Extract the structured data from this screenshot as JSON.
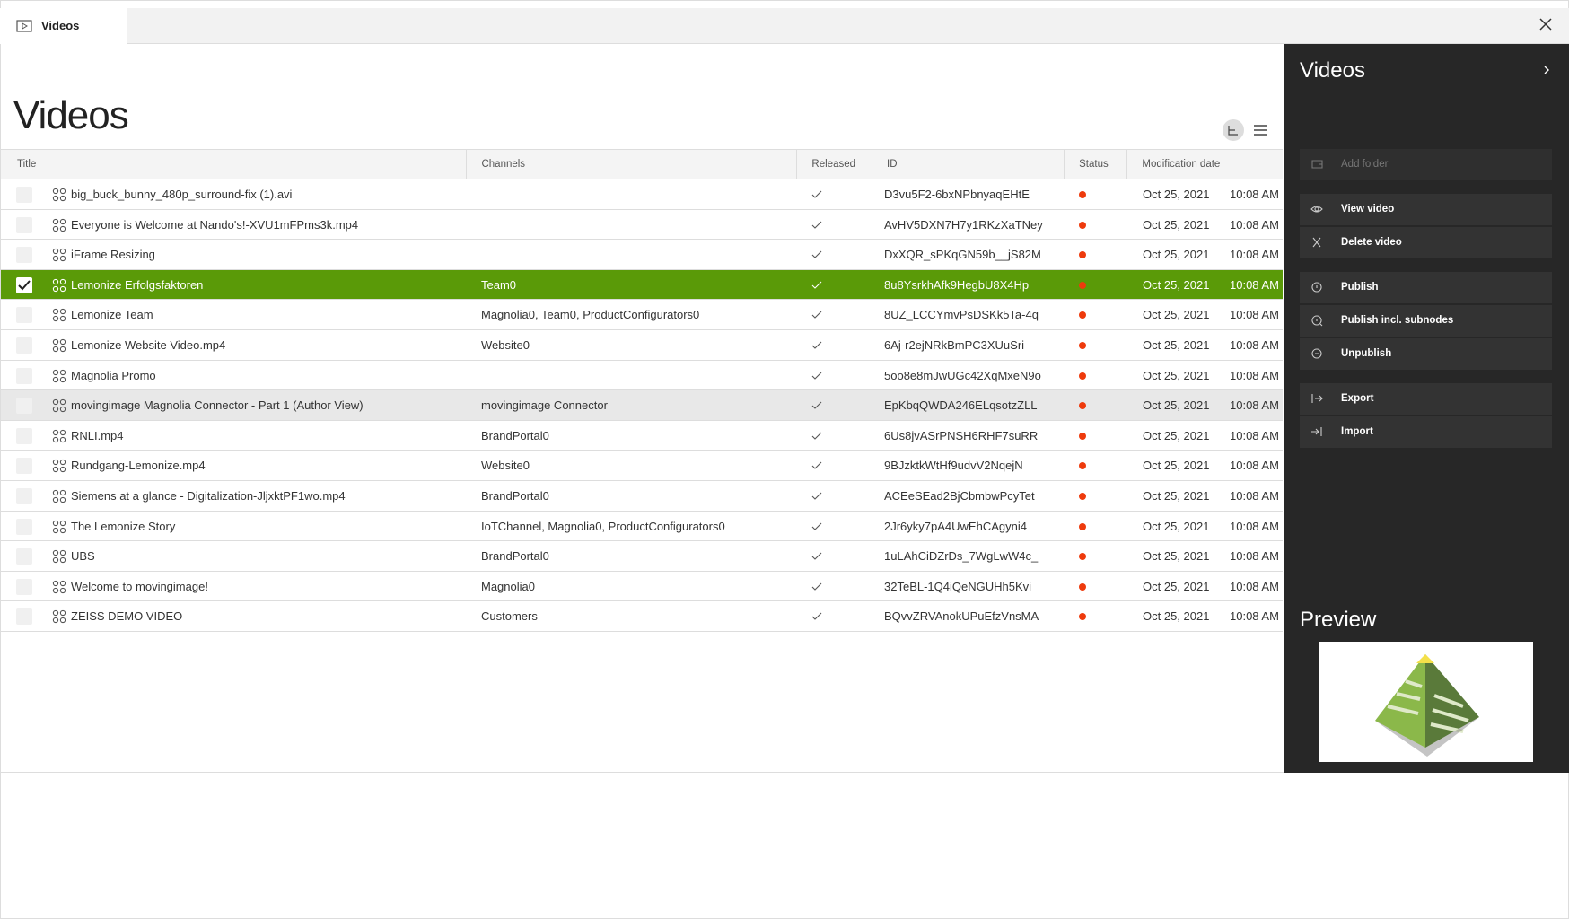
{
  "tab": {
    "label": "Videos"
  },
  "header": {
    "title": "Videos"
  },
  "table": {
    "columns": [
      "Title",
      "Channels",
      "Released",
      "ID",
      "Status",
      "Modification date"
    ],
    "selected_row": 3,
    "hover_row": 7,
    "rows": [
      {
        "title": "big_buck_bunny_480p_surround-fix (1).avi",
        "id": "D3vu5F2-6bxNPbnyaqEHtE",
        "date": "Oct 25, 2021",
        "time": "10:08 AM"
      },
      {
        "title": "Everyone is Welcome at Nando's!-XVU1mFPms3k.mp4",
        "id": "AvHV5DXN7H7y1RKzXaTNey",
        "date": "Oct 25, 2021",
        "time": "10:08 AM"
      },
      {
        "title": "iFrame Resizing",
        "id": "DxXQR_sPKqGN59b__jS82M",
        "date": "Oct 25, 2021",
        "time": "10:08 AM"
      },
      {
        "title": "Lemonize Erfolgsfaktoren",
        "channels": "Team0",
        "id": "8u8YsrkhAfk9HegbU8X4Hp",
        "date": "Oct 25, 2021",
        "time": "10:08 AM"
      },
      {
        "title": "Lemonize Team",
        "channels": "Magnolia0, Team0, ProductConfigurators0",
        "id": "8UZ_LCCYmvPsDSKk5Ta-4q",
        "date": "Oct 25, 2021",
        "time": "10:08 AM"
      },
      {
        "title": "Lemonize Website Video.mp4",
        "channels": "Website0",
        "id": "6Aj-r2ejNRkBmPC3XUuSri",
        "date": "Oct 25, 2021",
        "time": "10:08 AM"
      },
      {
        "title": "Magnolia Promo",
        "id": "5oo8e8mJwUGc42XqMxeN9o",
        "date": "Oct 25, 2021",
        "time": "10:08 AM"
      },
      {
        "title": "movingimage Magnolia Connector - Part 1 (Author View)",
        "channels": "movingimage Connector",
        "id": "EpKbqQWDA246ELqsotzZLL",
        "date": "Oct 25, 2021",
        "time": "10:08 AM"
      },
      {
        "title": "RNLI.mp4",
        "channels": "BrandPortal0",
        "id": "6Us8jvASrPNSH6RHF7suRR",
        "date": "Oct 25, 2021",
        "time": "10:08 AM"
      },
      {
        "title": "Rundgang-Lemonize.mp4",
        "channels": "Website0",
        "id": "9BJzktkWtHf9udvV2NqejN",
        "date": "Oct 25, 2021",
        "time": "10:08 AM"
      },
      {
        "title": "Siemens at a glance - Digitalization-JljxktPF1wo.mp4",
        "channels": "BrandPortal0",
        "id": "ACEeSEad2BjCbmbwPcyTet",
        "date": "Oct 25, 2021",
        "time": "10:08 AM"
      },
      {
        "title": "The Lemonize Story",
        "channels": "IoTChannel, Magnolia0, ProductConfigurators0",
        "id": "2Jr6yky7pA4UwEhCAgyni4",
        "date": "Oct 25, 2021",
        "time": "10:08 AM"
      },
      {
        "title": "UBS",
        "channels": "BrandPortal0",
        "id": "1uLAhCiDZrDs_7WgLwW4c_",
        "date": "Oct 25, 2021",
        "time": "10:08 AM"
      },
      {
        "title": "Welcome to movingimage!",
        "channels": "Magnolia0",
        "id": "32TeBL-1Q4iQeNGUHh5Kvi",
        "date": "Oct 25, 2021",
        "time": "10:08 AM"
      },
      {
        "title": "ZEISS DEMO VIDEO",
        "channels": "Customers",
        "id": "BQvvZRVAnokUPuEfzVnsMA",
        "date": "Oct 25, 2021",
        "time": "10:08 AM"
      }
    ]
  },
  "panel": {
    "title": "Videos",
    "actions": [
      {
        "label": "Add folder",
        "group": 0,
        "disabled": true
      },
      {
        "label": "View video",
        "group": 1
      },
      {
        "label": "Delete video",
        "group": 1
      },
      {
        "label": "Publish",
        "group": 2
      },
      {
        "label": "Publish incl. subnodes",
        "group": 2
      },
      {
        "label": "Unpublish",
        "group": 2
      },
      {
        "label": "Export",
        "group": 3
      },
      {
        "label": "Import",
        "group": 3
      }
    ],
    "preview_title": "Preview"
  }
}
